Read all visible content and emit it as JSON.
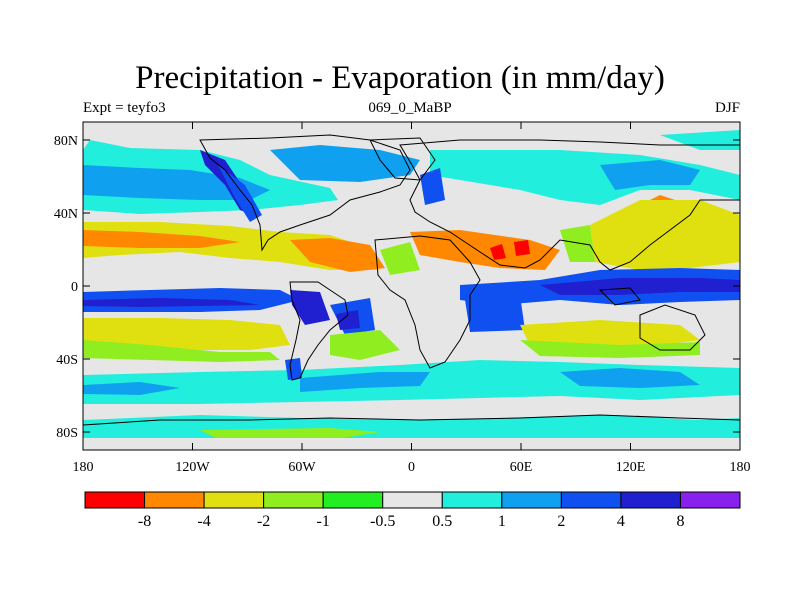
{
  "title": "Precipitation - Evaporation (in mm/day)",
  "subtitle_left": "Expt = teyfo3",
  "subtitle_center": "069_0_MaBP",
  "subtitle_right": "DJF",
  "lat_ticks": [
    "80N",
    "40N",
    "0",
    "40S",
    "80S"
  ],
  "lon_ticks": [
    "180",
    "120W",
    "60W",
    "0",
    "60E",
    "120E",
    "180"
  ],
  "colorbar": {
    "colors": [
      "#ff0000",
      "#ff8800",
      "#e0e010",
      "#90ee20",
      "#22ee22",
      "#e6e6e6",
      "#22eedd",
      "#10a0f0",
      "#1050f0",
      "#2020d0",
      "#8820ee"
    ],
    "labels": [
      "-8",
      "-4",
      "-2",
      "-1",
      "-0.5",
      "0.5",
      "1",
      "2",
      "4",
      "8"
    ]
  },
  "colors": {
    "land_outline": "#000000",
    "neutral": "#e6e6e6"
  }
}
